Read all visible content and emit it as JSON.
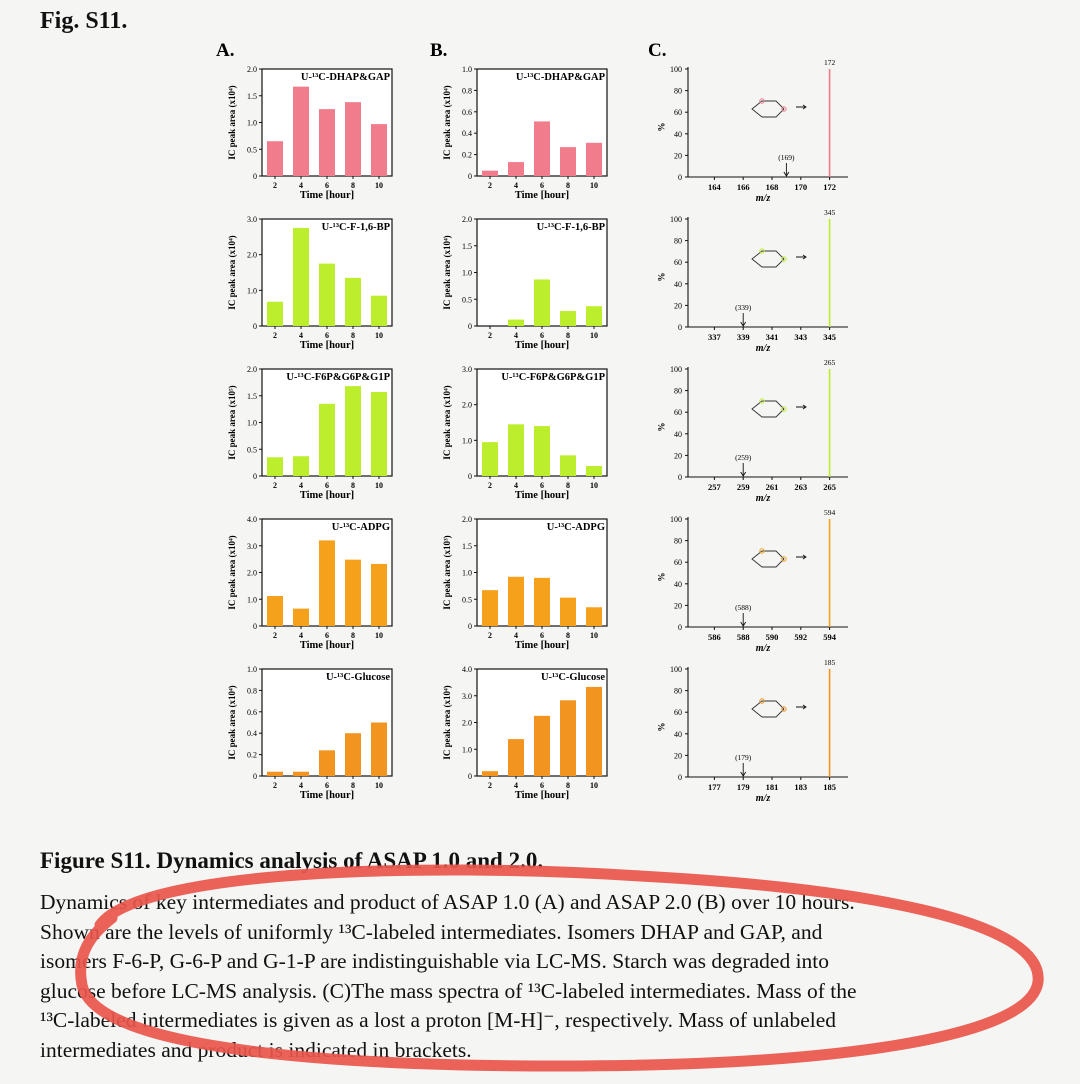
{
  "fig_label": "Fig. S11.",
  "panel_labels": [
    "A.",
    "B.",
    "C."
  ],
  "colors": {
    "pink": "#f07c8c",
    "green": "#bdee2e",
    "orange": "#f5a11c",
    "orange2": "#f29520",
    "annotation": "#e8554b"
  },
  "bar_xlabel": "Time [hour]",
  "bar_xticks": [
    "2",
    "4",
    "6",
    "8",
    "10"
  ],
  "ms_xlabel": "m/z",
  "ms_ylabel": "%",
  "ms_yticks": [
    "100",
    "80",
    "60",
    "40",
    "20",
    "0"
  ],
  "chart_data": [
    {
      "id": "A1",
      "type": "bar",
      "title": "U-¹³C-DHAP&GAP",
      "ylabel": "IC peak area (x10⁴)",
      "yticks": [
        "0",
        "0.5",
        "1.0",
        "1.5",
        "2.0"
      ],
      "ylim": [
        0,
        2.0
      ],
      "categories": [
        "2",
        "4",
        "6",
        "8",
        "10"
      ],
      "values": [
        0.65,
        1.67,
        1.25,
        1.38,
        0.97
      ],
      "color": "pink"
    },
    {
      "id": "A2",
      "type": "bar",
      "title": "U-¹³C-F-1,6-BP",
      "ylabel": "IC peak area (x10⁴)",
      "yticks": [
        "0",
        "1.0",
        "2.0",
        "3.0"
      ],
      "ylim": [
        0,
        3.0
      ],
      "categories": [
        "2",
        "4",
        "6",
        "8",
        "10"
      ],
      "values": [
        0.68,
        2.75,
        1.75,
        1.35,
        0.85
      ],
      "color": "green"
    },
    {
      "id": "A3",
      "type": "bar",
      "title": "U-¹³C-F6P&G6P&G1P",
      "ylabel": "IC peak area (x10⁵)",
      "yticks": [
        "0",
        "0.5",
        "1.0",
        "1.5",
        "2.0"
      ],
      "ylim": [
        0,
        2.0
      ],
      "categories": [
        "2",
        "4",
        "6",
        "8",
        "10"
      ],
      "values": [
        0.35,
        0.37,
        1.35,
        1.68,
        1.57
      ],
      "color": "green"
    },
    {
      "id": "A4",
      "type": "bar",
      "title": "U-¹³C-ADPG",
      "ylabel": "IC peak area (x10⁴)",
      "yticks": [
        "0",
        "1.0",
        "2.0",
        "3.0",
        "4.0"
      ],
      "ylim": [
        0,
        4.0
      ],
      "categories": [
        "2",
        "4",
        "6",
        "8",
        "10"
      ],
      "values": [
        1.12,
        0.65,
        3.2,
        2.48,
        2.32
      ],
      "color": "orange"
    },
    {
      "id": "A5",
      "type": "bar",
      "title": "U-¹³C-Glucose",
      "ylabel": "IC peak area (x10⁴)",
      "yticks": [
        "0",
        "0.2",
        "0.4",
        "0.6",
        "0.8",
        "1.0"
      ],
      "ylim": [
        0,
        1.0
      ],
      "categories": [
        "2",
        "4",
        "6",
        "8",
        "10"
      ],
      "values": [
        0.04,
        0.04,
        0.24,
        0.4,
        0.5
      ],
      "color": "orange2"
    },
    {
      "id": "B1",
      "type": "bar",
      "title": "U-¹³C-DHAP&GAP",
      "ylabel": "IC peak area (x10⁴)",
      "yticks": [
        "0",
        "0.2",
        "0.4",
        "0.6",
        "0.8",
        "1.0"
      ],
      "ylim": [
        0,
        1.0
      ],
      "categories": [
        "2",
        "4",
        "6",
        "8",
        "10"
      ],
      "values": [
        0.05,
        0.13,
        0.51,
        0.27,
        0.31
      ],
      "color": "pink"
    },
    {
      "id": "B2",
      "type": "bar",
      "title": "U-¹³C-F-1,6-BP",
      "ylabel": "IC peak area (x10⁴)",
      "yticks": [
        "0",
        "0.5",
        "1.0",
        "1.5",
        "2.0"
      ],
      "ylim": [
        0,
        2.0
      ],
      "categories": [
        "2",
        "4",
        "6",
        "8",
        "10"
      ],
      "values": [
        0.0,
        0.12,
        0.87,
        0.28,
        0.37
      ],
      "color": "green"
    },
    {
      "id": "B3",
      "type": "bar",
      "title": "U-¹³C-F6P&G6P&G1P",
      "ylabel": "IC peak area (x10⁴)",
      "yticks": [
        "0",
        "1.0",
        "2.0",
        "3.0"
      ],
      "ylim": [
        0,
        3.0
      ],
      "categories": [
        "2",
        "4",
        "6",
        "8",
        "10"
      ],
      "values": [
        0.95,
        1.45,
        1.4,
        0.58,
        0.28
      ],
      "color": "green"
    },
    {
      "id": "B4",
      "type": "bar",
      "title": "U-¹³C-ADPG",
      "ylabel": "IC peak area (x10³)",
      "yticks": [
        "0",
        "0.5",
        "1.0",
        "1.5",
        "2.0"
      ],
      "ylim": [
        0,
        2.0
      ],
      "categories": [
        "2",
        "4",
        "6",
        "8",
        "10"
      ],
      "values": [
        0.67,
        0.92,
        0.9,
        0.53,
        0.35
      ],
      "color": "orange"
    },
    {
      "id": "B5",
      "type": "bar",
      "title": "U-¹³C-Glucose",
      "ylabel": "IC peak area (x10⁴)",
      "yticks": [
        "0",
        "1.0",
        "2.0",
        "3.0",
        "4.0"
      ],
      "ylim": [
        0,
        4.0
      ],
      "categories": [
        "2",
        "4",
        "6",
        "8",
        "10"
      ],
      "values": [
        0.18,
        1.38,
        2.25,
        2.83,
        3.33
      ],
      "color": "orange2"
    },
    {
      "id": "C1",
      "type": "bar",
      "xlabel": "m/z",
      "ylabel": "%",
      "xticks": [
        "164",
        "166",
        "168",
        "170",
        "172"
      ],
      "xlim": [
        163,
        173
      ],
      "ylim": [
        0,
        100
      ],
      "peaks": [
        {
          "x": 172,
          "y": 100,
          "label": "172"
        }
      ],
      "marker": {
        "x": 169,
        "label": "(169)"
      },
      "color": "pink"
    },
    {
      "id": "C2",
      "type": "bar",
      "xlabel": "m/z",
      "ylabel": "%",
      "xticks": [
        "337",
        "339",
        "341",
        "343",
        "345"
      ],
      "xlim": [
        336,
        346
      ],
      "ylim": [
        0,
        100
      ],
      "peaks": [
        {
          "x": 345,
          "y": 100,
          "label": "345"
        }
      ],
      "marker": {
        "x": 339,
        "label": "(339)"
      },
      "color": "green"
    },
    {
      "id": "C3",
      "type": "bar",
      "xlabel": "m/z",
      "ylabel": "%",
      "xticks": [
        "257",
        "259",
        "261",
        "263",
        "265"
      ],
      "xlim": [
        256,
        266
      ],
      "ylim": [
        0,
        100
      ],
      "peaks": [
        {
          "x": 265,
          "y": 100,
          "label": "265"
        }
      ],
      "marker": {
        "x": 259,
        "label": "(259)"
      },
      "color": "green"
    },
    {
      "id": "C4",
      "type": "bar",
      "xlabel": "m/z",
      "ylabel": "%",
      "xticks": [
        "586",
        "588",
        "590",
        "592",
        "594"
      ],
      "xlim": [
        585,
        595
      ],
      "ylim": [
        0,
        100
      ],
      "peaks": [
        {
          "x": 594,
          "y": 100,
          "label": "594"
        }
      ],
      "marker": {
        "x": 588,
        "label": "(588)"
      },
      "color": "orange"
    },
    {
      "id": "C5",
      "type": "bar",
      "xlabel": "m/z",
      "ylabel": "%",
      "xticks": [
        "177",
        "179",
        "181",
        "183",
        "185"
      ],
      "xlim": [
        176,
        186
      ],
      "ylim": [
        0,
        100
      ],
      "peaks": [
        {
          "x": 185,
          "y": 100,
          "label": "185"
        }
      ],
      "marker": {
        "x": 179,
        "label": "(179)"
      },
      "color": "orange2"
    }
  ],
  "caption": {
    "title": "Figure S11. Dynamics analysis of ASAP 1.0 and 2.0.",
    "lines": [
      "Dynamics of key intermediates and product of ASAP 1.0 (A) and ASAP 2.0 (B) over 10 hours.",
      "Shown are the levels of uniformly ¹³C-labeled intermediates. Isomers DHAP and GAP, and",
      "isomers F-6-P, G-6-P and G-1-P are indistinguishable via LC-MS. Starch was degraded into",
      "glucose before LC-MS analysis. (C)The mass spectra of ¹³C-labeled intermediates. Mass of the",
      "¹³C-labeled intermediates is given as a lost a proton [M-H]⁻, respectively. Mass of unlabeled",
      "intermediates and product is indicated in brackets."
    ]
  }
}
